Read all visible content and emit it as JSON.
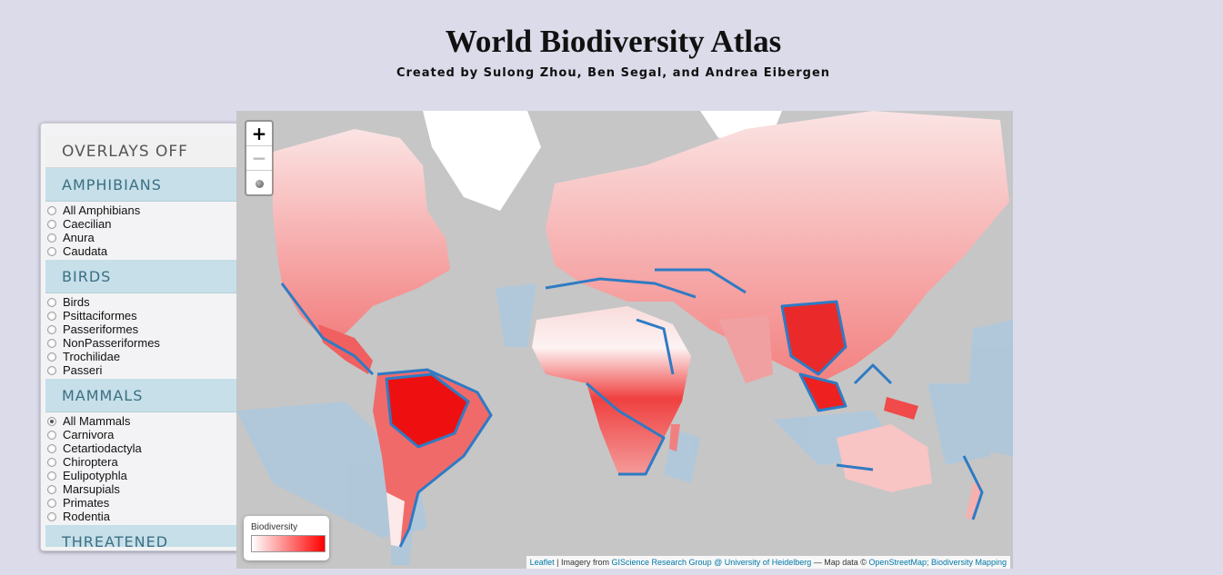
{
  "header": {
    "title": "World Biodiversity Atlas",
    "subtitle": "Created by Sulong Zhou, Ben Segal, and Andrea Eibergen"
  },
  "panel": {
    "off_label": "OVERLAYS OFF",
    "groups": [
      {
        "label": "AMPHIBIANS",
        "options": [
          "All Amphibians",
          "Caecilian",
          "Anura",
          "Caudata"
        ]
      },
      {
        "label": "BIRDS",
        "options": [
          "Birds",
          "Psittaciformes",
          "Passeriformes",
          "NonPasseriformes",
          "Trochilidae",
          "Passeri"
        ]
      },
      {
        "label": "MAMMALS",
        "options": [
          "All Mammals",
          "Carnivora",
          "Cetartiodactyla",
          "Chiroptera",
          "Eulipotyphla",
          "Marsupials",
          "Primates",
          "Rodentia"
        ]
      },
      {
        "label": "THREATENED",
        "options": []
      }
    ],
    "selected": "All Mammals"
  },
  "map": {
    "zoom_in": "+",
    "zoom_out": "−",
    "legend_title": "Biodiversity",
    "legend_low_color": "#ffffff",
    "legend_high_color": "#ff0000",
    "overlay_color": "#2e7bc4",
    "attribution": {
      "leaflet": "Leaflet",
      "imagery_prefix": " | Imagery from ",
      "imagery_source": "GIScience Research Group @ University of Heidelberg",
      "data_prefix": " — Map data © ",
      "data_source": "OpenStreetMap; Biodiversity Mapping"
    }
  }
}
